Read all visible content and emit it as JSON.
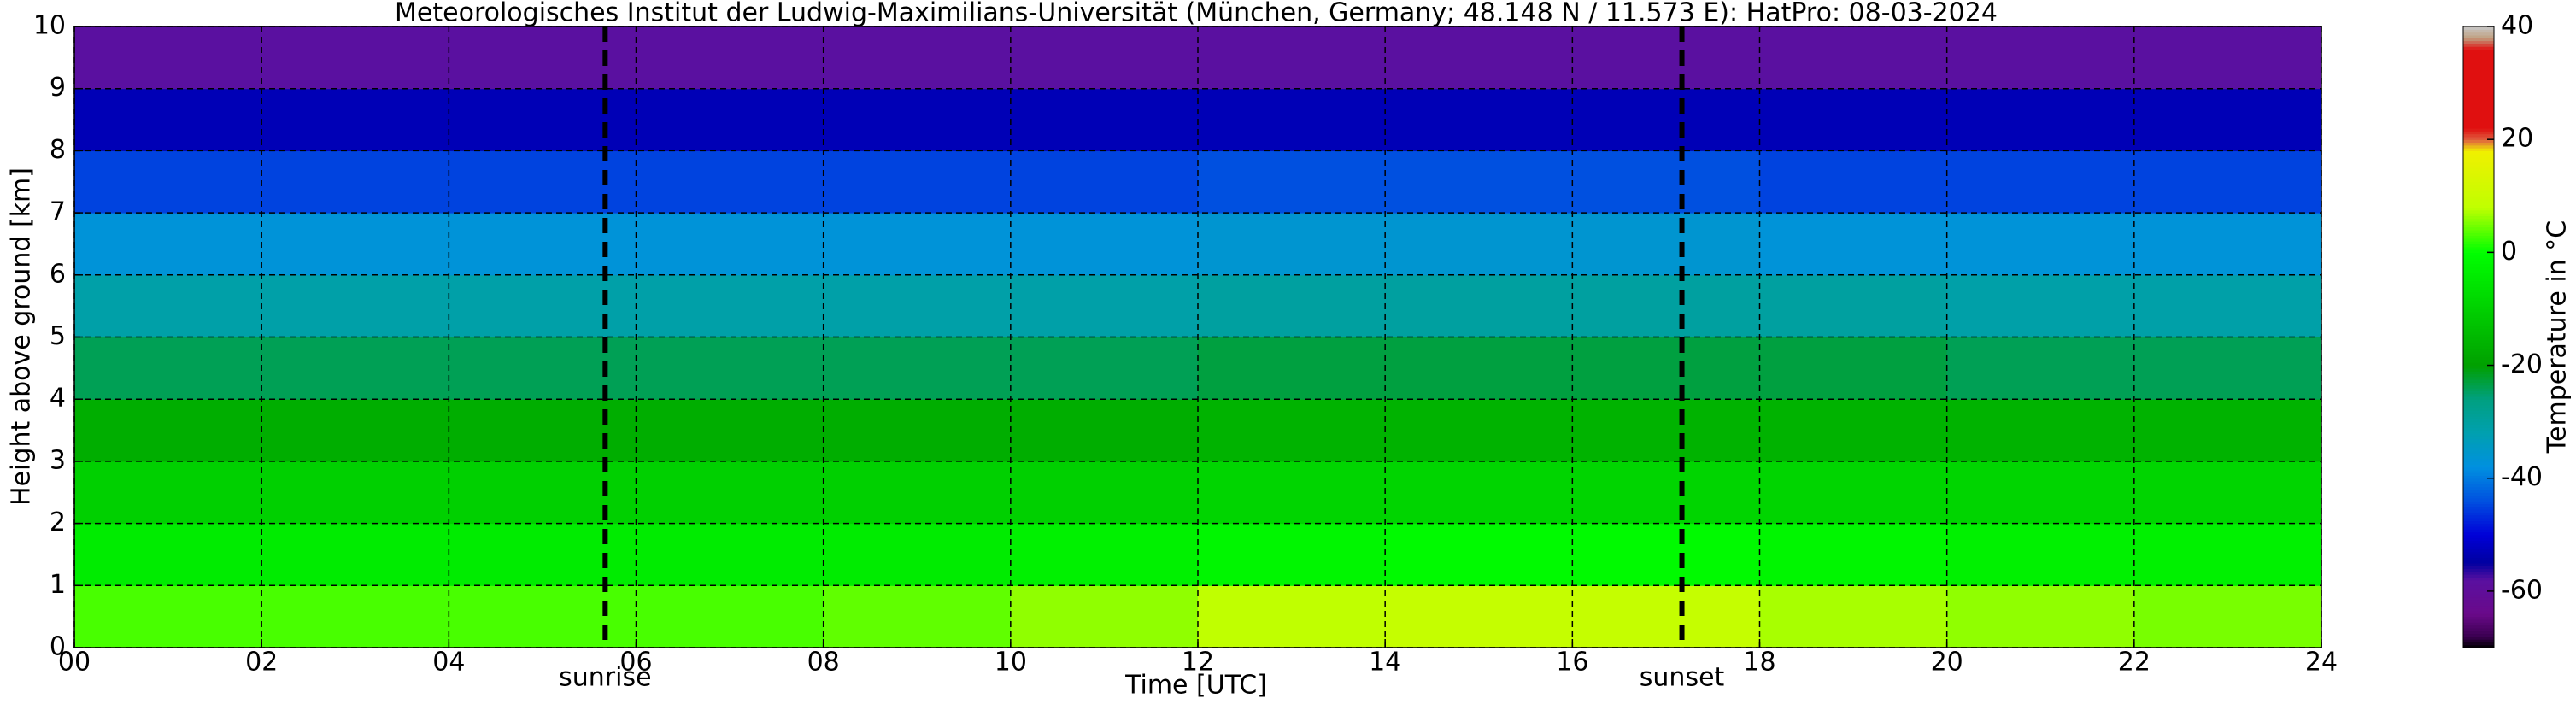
{
  "chart_data": {
    "type": "heatmap",
    "title": "Meteorologisches Institut der Ludwig-Maximilians-Universität (München, Germany; 48.148 N / 11.573 E):    HatPro: 08-03-2024",
    "xlabel": "Time [UTC]",
    "ylabel": "Height above ground [km]",
    "x_edges": [
      0,
      2,
      4,
      6,
      8,
      10,
      12,
      14,
      16,
      18,
      20,
      22,
      24
    ],
    "y_edges": [
      0,
      1,
      2,
      3,
      4,
      5,
      6,
      7,
      8,
      9,
      10
    ],
    "values": [
      [
        3,
        3,
        3,
        3,
        4,
        6,
        8,
        9,
        9,
        7,
        6,
        5
      ],
      [
        -4,
        -4,
        -4,
        -4,
        -4,
        -3,
        -2,
        -1,
        -1,
        -2,
        -3,
        -3
      ],
      [
        -10,
        -10,
        -10,
        -10,
        -10,
        -10,
        -9,
        -9,
        -9,
        -9,
        -9,
        -9
      ],
      [
        -17,
        -17,
        -17,
        -17,
        -17,
        -17,
        -16,
        -16,
        -16,
        -16,
        -16,
        -16
      ],
      [
        -24,
        -24,
        -24,
        -24,
        -24,
        -24,
        -23,
        -23,
        -23,
        -23,
        -24,
        -24
      ],
      [
        -31,
        -31,
        -31,
        -31,
        -31,
        -31,
        -30,
        -30,
        -30,
        -30,
        -31,
        -31
      ],
      [
        -37,
        -37,
        -37,
        -37,
        -37,
        -37,
        -36,
        -36,
        -36,
        -37,
        -37,
        -37
      ],
      [
        -45,
        -45,
        -45,
        -45,
        -45,
        -45,
        -44,
        -44,
        -44,
        -45,
        -45,
        -45
      ],
      [
        -53,
        -53,
        -53,
        -53,
        -53,
        -53,
        -53,
        -53,
        -53,
        -53,
        -53,
        -53
      ],
      [
        -58,
        -58,
        -58,
        -58,
        -58,
        -58,
        -58,
        -58,
        -58,
        -58,
        -58,
        -58
      ]
    ],
    "xlim": [
      0,
      24
    ],
    "xticks": [
      {
        "value": 0,
        "label": "00"
      },
      {
        "value": 2,
        "label": "02"
      },
      {
        "value": 4,
        "label": "04"
      },
      {
        "value": 6,
        "label": "06"
      },
      {
        "value": 8,
        "label": "08"
      },
      {
        "value": 10,
        "label": "10"
      },
      {
        "value": 12,
        "label": "12"
      },
      {
        "value": 14,
        "label": "14"
      },
      {
        "value": 16,
        "label": "16"
      },
      {
        "value": 18,
        "label": "18"
      },
      {
        "value": 20,
        "label": "20"
      },
      {
        "value": 22,
        "label": "22"
      },
      {
        "value": 24,
        "label": "24"
      }
    ],
    "ylim": [
      0,
      10
    ],
    "yticks": [
      0,
      1,
      2,
      3,
      4,
      5,
      6,
      7,
      8,
      9,
      10
    ],
    "grid": true,
    "annotations": [
      {
        "x": 5.67,
        "label": "sunrise"
      },
      {
        "x": 17.17,
        "label": "sunset"
      }
    ],
    "colorbar": {
      "label": "Temperature in °C",
      "lim": [
        -70,
        40
      ],
      "ticks": [
        -60,
        -40,
        -20,
        0,
        20,
        40
      ],
      "stops": [
        {
          "value": -70,
          "color": "#000000"
        },
        {
          "value": -68,
          "color": "#3a0050"
        },
        {
          "value": -64,
          "color": "#6a0a8a"
        },
        {
          "value": -58,
          "color": "#5a10a0"
        },
        {
          "value": -55,
          "color": "#0000a0"
        },
        {
          "value": -50,
          "color": "#0000d8"
        },
        {
          "value": -44,
          "color": "#0050e0"
        },
        {
          "value": -38,
          "color": "#0090e0"
        },
        {
          "value": -32,
          "color": "#00a0b0"
        },
        {
          "value": -26,
          "color": "#00a080"
        },
        {
          "value": -20,
          "color": "#00a000"
        },
        {
          "value": -10,
          "color": "#00d000"
        },
        {
          "value": 0,
          "color": "#00ff00"
        },
        {
          "value": 8,
          "color": "#c0ff00"
        },
        {
          "value": 18,
          "color": "#f0f000"
        },
        {
          "value": 20,
          "color": "#e06040"
        },
        {
          "value": 22,
          "color": "#e01010"
        },
        {
          "value": 36,
          "color": "#e01010"
        },
        {
          "value": 38,
          "color": "#c0a080"
        },
        {
          "value": 40,
          "color": "#c8c8c8"
        }
      ]
    }
  }
}
